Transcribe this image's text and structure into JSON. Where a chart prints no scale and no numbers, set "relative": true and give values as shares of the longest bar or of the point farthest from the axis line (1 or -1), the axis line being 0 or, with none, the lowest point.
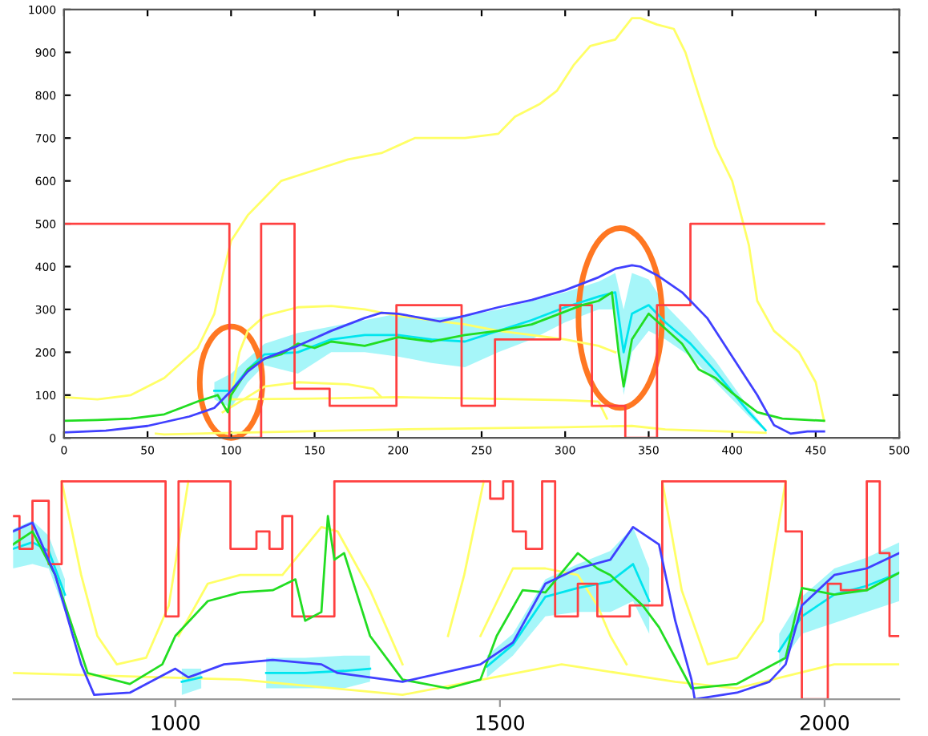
{
  "chart_data": [
    {
      "type": "line",
      "xlim": [
        0,
        500
      ],
      "ylim": [
        0,
        1000
      ],
      "xticks": [
        0,
        50,
        100,
        150,
        200,
        250,
        300,
        350,
        400,
        450,
        500
      ],
      "yticks": [
        0,
        100,
        200,
        300,
        400,
        500,
        600,
        700,
        800,
        900,
        1000
      ],
      "grid": false,
      "series": [
        {
          "color": "#ffff66",
          "x": [
            0,
            20,
            40,
            60,
            80,
            90,
            95,
            100,
            105,
            110,
            120,
            130,
            150,
            170,
            190,
            210,
            240,
            260,
            270,
            285,
            295,
            305,
            315,
            330,
            340,
            345,
            355,
            365,
            372,
            380,
            390,
            400,
            410,
            415,
            425,
            440,
            450,
            455
          ],
          "values": [
            95,
            90,
            100,
            140,
            210,
            290,
            380,
            460,
            490,
            520,
            560,
            600,
            625,
            650,
            665,
            700,
            700,
            710,
            750,
            780,
            810,
            870,
            915,
            930,
            980,
            980,
            965,
            955,
            900,
            800,
            680,
            600,
            450,
            320,
            250,
            200,
            130,
            40
          ]
        },
        {
          "color": "#ffff66",
          "x": [
            100,
            105,
            110,
            120,
            140,
            160,
            180,
            200,
            220,
            240,
            260,
            280,
            300,
            320,
            330
          ],
          "values": [
            95,
            200,
            250,
            285,
            305,
            308,
            300,
            285,
            275,
            265,
            250,
            240,
            230,
            215,
            200
          ]
        },
        {
          "color": "#ffff66",
          "x": [
            95,
            120,
            140,
            170,
            185,
            190
          ],
          "values": [
            60,
            120,
            130,
            125,
            115,
            95
          ]
        },
        {
          "color": "#ffff66",
          "x": [
            100,
            150,
            200,
            250,
            300,
            320,
            325
          ],
          "values": [
            90,
            92,
            95,
            92,
            88,
            85,
            45
          ]
        },
        {
          "color": "#ffff66",
          "x": [
            55,
            60,
            100,
            200,
            300,
            340,
            360,
            420
          ],
          "values": [
            10,
            8,
            12,
            20,
            25,
            28,
            20,
            12
          ]
        },
        {
          "color": "#00e5ee",
          "x": [
            90,
            100,
            110,
            120,
            140,
            160,
            180,
            200,
            220,
            240,
            260,
            280,
            300,
            320,
            330,
            335,
            340,
            350,
            360,
            375,
            390,
            410,
            420
          ],
          "values": [
            110,
            110,
            160,
            195,
            200,
            230,
            240,
            240,
            230,
            225,
            250,
            275,
            305,
            330,
            340,
            200,
            290,
            310,
            270,
            220,
            155,
            60,
            18
          ],
          "lower": [
            90,
            70,
            130,
            170,
            150,
            200,
            200,
            190,
            175,
            165,
            200,
            230,
            270,
            300,
            300,
            100,
            200,
            250,
            230,
            190,
            130,
            50,
            15
          ],
          "upper": [
            130,
            150,
            185,
            220,
            245,
            260,
            275,
            290,
            280,
            285,
            300,
            320,
            340,
            365,
            385,
            300,
            385,
            370,
            310,
            250,
            180,
            70,
            20
          ]
        },
        {
          "type": "step",
          "color": "#ff4040",
          "x": [
            0,
            99,
            118,
            138,
            159,
            199,
            238,
            258,
            297,
            316,
            336,
            355,
            375,
            455
          ],
          "values": [
            500,
            0,
            500,
            115,
            75,
            310,
            75,
            230,
            310,
            75,
            0,
            310,
            500,
            500
          ]
        },
        {
          "color": "#22dd22",
          "x": [
            0,
            20,
            40,
            60,
            80,
            92,
            98,
            100,
            110,
            120,
            130,
            140,
            150,
            160,
            180,
            200,
            220,
            240,
            260,
            280,
            300,
            310,
            320,
            328,
            332,
            335,
            340,
            350,
            360,
            370,
            380,
            390,
            400,
            415,
            430,
            455
          ],
          "values": [
            40,
            42,
            45,
            55,
            85,
            100,
            60,
            100,
            160,
            185,
            195,
            220,
            210,
            225,
            215,
            235,
            225,
            240,
            250,
            265,
            295,
            310,
            320,
            340,
            200,
            120,
            230,
            290,
            255,
            220,
            160,
            140,
            105,
            60,
            45,
            40
          ]
        },
        {
          "color": "#4040ff",
          "x": [
            0,
            25,
            50,
            75,
            90,
            100,
            110,
            120,
            140,
            160,
            180,
            190,
            200,
            225,
            240,
            260,
            280,
            300,
            320,
            330,
            340,
            345,
            355,
            370,
            385,
            400,
            415,
            425,
            435,
            445,
            455
          ],
          "values": [
            13,
            17,
            28,
            50,
            70,
            110,
            155,
            185,
            215,
            250,
            280,
            292,
            290,
            272,
            285,
            305,
            322,
            345,
            375,
            395,
            403,
            400,
            380,
            340,
            280,
            190,
            100,
            30,
            10,
            15,
            15
          ]
        }
      ]
    },
    {
      "type": "line",
      "relative": true,
      "xlim": [
        750,
        2115
      ],
      "xticks": [
        1000,
        1500,
        2000
      ],
      "tick_labels": "x",
      "grid": false,
      "series": [
        {
          "color": "#ffff66",
          "x": [
            825,
            855,
            880,
            910,
            955,
            990,
            1020,
            1030,
            1420,
            1445,
            1475,
            1500,
            1750,
            1780,
            1820,
            1865,
            1905,
            1940
          ],
          "values": [
            1,
            0.57,
            0.29,
            0.16,
            0.19,
            0.43,
            1,
            null,
            0.29,
            0.57,
            1,
            null,
            1,
            0.5,
            0.16,
            0.19,
            0.36,
            1
          ]
        },
        {
          "color": "#ffff66",
          "x": [
            1005,
            1050,
            1100,
            1165,
            1225,
            1250,
            1300,
            1350,
            1400,
            1470,
            1520,
            1570,
            1620,
            1650,
            1670,
            1695
          ],
          "values": [
            0.29,
            0.53,
            0.57,
            0.57,
            0.79,
            0.77,
            0.5,
            0.16,
            null,
            0.29,
            0.6,
            0.6,
            0.57,
            0.43,
            0.29,
            0.16
          ]
        },
        {
          "color": "#ffff66",
          "x": [
            750,
            980,
            1100,
            1350,
            1595,
            1770,
            1865,
            2015,
            2115
          ],
          "values": [
            0.12,
            0.1,
            0.09,
            0.02,
            0.16,
            0.08,
            0.05,
            0.16,
            0.16
          ]
        },
        {
          "color": "#00e5ee",
          "x": [
            750,
            780,
            805,
            830,
            850,
            1010,
            1040,
            1060,
            1140,
            1200,
            1260,
            1300,
            1320,
            1480,
            1520,
            1570,
            1620,
            1670,
            1705,
            1730,
            1750,
            1930,
            1965,
            2015,
            2065,
            2115
          ],
          "values": [
            0.69,
            0.72,
            0.68,
            0.48,
            null,
            0.08,
            0.1,
            null,
            0.12,
            0.12,
            0.13,
            0.14,
            null,
            0.15,
            0.25,
            0.47,
            0.51,
            0.54,
            0.62,
            0.45,
            null,
            0.22,
            0.38,
            0.48,
            0.52,
            0.58
          ],
          "lower": [
            0.6,
            0.62,
            0.6,
            0.4,
            null,
            0.02,
            0.05,
            null,
            0.05,
            0.05,
            0.05,
            0.08,
            null,
            0.1,
            0.2,
            0.38,
            0.4,
            0.4,
            0.45,
            0.3,
            null,
            0.15,
            0.3,
            0.35,
            0.4,
            0.45
          ],
          "upper": [
            0.78,
            0.82,
            0.75,
            0.55,
            null,
            0.14,
            0.14,
            null,
            0.19,
            0.19,
            0.2,
            0.2,
            null,
            0.2,
            0.3,
            0.55,
            0.62,
            0.68,
            0.79,
            0.6,
            null,
            0.3,
            0.47,
            0.6,
            0.65,
            0.72
          ]
        },
        {
          "type": "step",
          "color": "#ff4040",
          "x": [
            750,
            760,
            780,
            805,
            825,
            985,
            1005,
            1085,
            1125,
            1145,
            1165,
            1180,
            1245,
            1485,
            1505,
            1520,
            1540,
            1565,
            1585,
            1620,
            1650,
            1700,
            1750,
            1940,
            1965,
            2005,
            2025,
            2065,
            2085,
            2100,
            2115
          ],
          "values": [
            0.84,
            0.69,
            0.91,
            0.62,
            1,
            0.38,
            1,
            0.69,
            0.77,
            0.69,
            0.84,
            0.38,
            1,
            0.92,
            1,
            0.77,
            0.69,
            1,
            0.38,
            0.53,
            0.38,
            0.43,
            1,
            0.77,
            0,
            0.53,
            0.5,
            1,
            0.67,
            0.29,
            0.29
          ]
        },
        {
          "color": "#22dd22",
          "x": [
            750,
            780,
            815,
            865,
            930,
            980,
            1000,
            1050,
            1100,
            1150,
            1185,
            1200,
            1225,
            1235,
            1245,
            1260,
            1300,
            1350,
            1420,
            1470,
            1495,
            1535,
            1570,
            1620,
            1650,
            1670,
            1720,
            1745,
            1795,
            1865,
            1940,
            1965,
            2015,
            2065,
            2115
          ],
          "values": [
            0.71,
            0.77,
            0.57,
            0.12,
            0.07,
            0.16,
            0.29,
            0.45,
            0.49,
            0.5,
            0.55,
            0.36,
            0.4,
            0.84,
            0.64,
            0.67,
            0.29,
            0.09,
            0.05,
            0.09,
            0.29,
            0.5,
            0.49,
            0.67,
            0.6,
            0.57,
            0.43,
            0.33,
            0.05,
            0.07,
            0.19,
            0.51,
            0.48,
            0.5,
            0.58
          ]
        },
        {
          "color": "#4040ff",
          "x": [
            750,
            780,
            815,
            855,
            875,
            930,
            1000,
            1020,
            1075,
            1150,
            1225,
            1250,
            1350,
            1470,
            1520,
            1570,
            1620,
            1670,
            1705,
            1745,
            1770,
            1795,
            1800,
            1865,
            1915,
            1940,
            1965,
            2015,
            2065,
            2115
          ],
          "values": [
            0.77,
            0.81,
            0.57,
            0.16,
            0.02,
            0.03,
            0.14,
            0.1,
            0.16,
            0.18,
            0.16,
            0.12,
            0.08,
            0.16,
            0.26,
            0.53,
            0.6,
            0.64,
            0.79,
            0.71,
            0.36,
            0.09,
            0,
            0.03,
            0.08,
            0.16,
            0.43,
            0.57,
            0.6,
            0.67
          ]
        }
      ]
    }
  ]
}
